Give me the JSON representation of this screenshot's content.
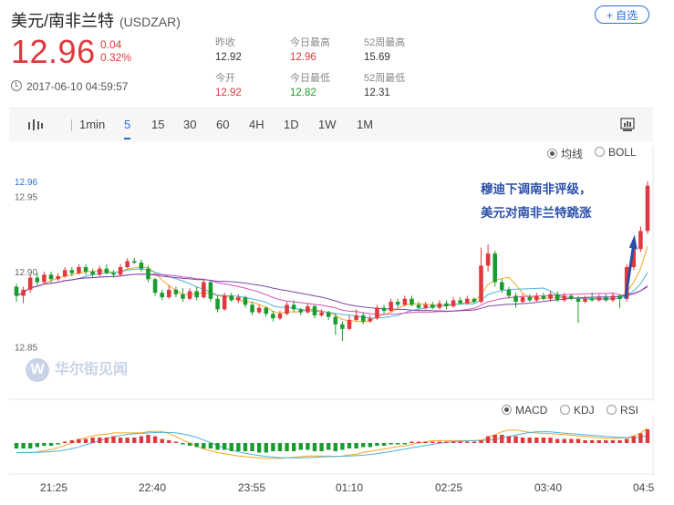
{
  "header": {
    "pair": "美元/南非兰特",
    "symbol": "(USDZAR)",
    "follow_label": "+ 自选",
    "price": "12.96",
    "change": "0.04",
    "change_pct": "0.32%",
    "timestamp": "2017-06-10 04:59:57",
    "stats": [
      {
        "label": "昨收",
        "value": "12.92"
      },
      {
        "label": "今日最高",
        "value": "12.96"
      },
      {
        "label": "52周最高",
        "value": "15.69"
      },
      {
        "label": "今开",
        "value": "12.92"
      },
      {
        "label": "今日最低",
        "value": "12.82"
      },
      {
        "label": "52周最低",
        "value": "12.31"
      }
    ]
  },
  "toolbar": {
    "intervals": [
      "1min",
      "5",
      "15",
      "30",
      "60",
      "4H",
      "1D",
      "1W",
      "1M"
    ],
    "active": "5",
    "chart_icon": "candlestick-icon",
    "settings_icon": "chart-settings-icon"
  },
  "main_options": {
    "ma_label": "均线",
    "boll_label": "BOLL",
    "selected": "均线"
  },
  "sub_options": {
    "macd": "MACD",
    "kdj": "KDJ",
    "rsi": "RSI",
    "selected": "MACD"
  },
  "annotation": {
    "line1": "穆迪下调南非评级，",
    "line2": "美元对南非兰特跳涨"
  },
  "watermark": "华尔街见闻",
  "colors": {
    "up": "#e0383e",
    "down": "#1a9b2f",
    "accent": "#2a6fd6",
    "annotation": "#2b4fa8"
  },
  "chart_data": {
    "type": "candlestick",
    "y_ticks": [
      "12.95",
      "12.90",
      "12.85"
    ],
    "current_price_label": "12.96",
    "ylim": [
      12.825,
      12.975
    ],
    "x_ticks": [
      "21:25",
      "22:40",
      "23:55",
      "01:10",
      "02:25",
      "03:40",
      "04:5"
    ],
    "candles": [
      [
        12.89,
        12.884,
        12.892,
        12.88
      ],
      [
        12.884,
        12.888,
        12.89,
        12.879
      ],
      [
        12.888,
        12.896,
        12.898,
        12.886
      ],
      [
        12.896,
        12.893,
        12.899,
        12.891
      ],
      [
        12.893,
        12.898,
        12.9,
        12.892
      ],
      [
        12.898,
        12.895,
        12.9,
        12.893
      ],
      [
        12.895,
        12.897,
        12.899,
        12.894
      ],
      [
        12.897,
        12.901,
        12.903,
        12.896
      ],
      [
        12.901,
        12.899,
        12.903,
        12.897
      ],
      [
        12.899,
        12.903,
        12.905,
        12.898
      ],
      [
        12.903,
        12.9,
        12.905,
        12.898
      ],
      [
        12.9,
        12.898,
        12.902,
        12.896
      ],
      [
        12.898,
        12.902,
        12.904,
        12.897
      ],
      [
        12.902,
        12.899,
        12.905,
        12.898
      ],
      [
        12.899,
        12.898,
        12.901,
        12.896
      ],
      [
        12.898,
        12.903,
        12.905,
        12.897
      ],
      [
        12.903,
        12.907,
        12.909,
        12.902
      ],
      [
        12.907,
        12.906,
        12.909,
        12.905
      ],
      [
        12.906,
        12.902,
        12.908,
        12.9
      ],
      [
        12.902,
        12.895,
        12.904,
        12.893
      ],
      [
        12.895,
        12.886,
        12.896,
        12.884
      ],
      [
        12.886,
        12.883,
        12.888,
        12.881
      ],
      [
        12.883,
        12.888,
        12.891,
        12.882
      ],
      [
        12.888,
        12.885,
        12.89,
        12.883
      ],
      [
        12.885,
        12.882,
        12.889,
        12.88
      ],
      [
        12.882,
        12.887,
        12.889,
        12.881
      ],
      [
        12.887,
        12.883,
        12.89,
        12.881
      ],
      [
        12.883,
        12.893,
        12.895,
        12.882
      ],
      [
        12.893,
        12.882,
        12.894,
        12.88
      ],
      [
        12.882,
        12.875,
        12.884,
        12.873
      ],
      [
        12.875,
        12.884,
        12.886,
        12.874
      ],
      [
        12.884,
        12.881,
        12.886,
        12.88
      ],
      [
        12.881,
        12.883,
        12.885,
        12.879
      ],
      [
        12.883,
        12.878,
        12.884,
        12.876
      ],
      [
        12.878,
        12.873,
        12.88,
        12.871
      ],
      [
        12.873,
        12.876,
        12.878,
        12.872
      ],
      [
        12.876,
        12.872,
        12.877,
        12.87
      ],
      [
        12.872,
        12.869,
        12.874,
        12.867
      ],
      [
        12.869,
        12.872,
        12.874,
        12.868
      ],
      [
        12.872,
        12.878,
        12.88,
        12.871
      ],
      [
        12.878,
        12.875,
        12.881,
        12.873
      ],
      [
        12.875,
        12.873,
        12.876,
        12.871
      ],
      [
        12.873,
        12.877,
        12.879,
        12.872
      ],
      [
        12.877,
        12.871,
        12.878,
        12.869
      ],
      [
        12.871,
        12.873,
        12.875,
        12.87
      ],
      [
        12.873,
        12.87,
        12.874,
        12.868
      ],
      [
        12.87,
        12.865,
        12.872,
        12.858
      ],
      [
        12.865,
        12.862,
        12.867,
        12.854
      ],
      [
        12.862,
        12.868,
        12.871,
        12.861
      ],
      [
        12.868,
        12.871,
        12.875,
        12.867
      ],
      [
        12.871,
        12.867,
        12.873,
        12.865
      ],
      [
        12.867,
        12.869,
        12.871,
        12.866
      ],
      [
        12.869,
        12.876,
        12.878,
        12.868
      ],
      [
        12.876,
        12.874,
        12.878,
        12.872
      ],
      [
        12.874,
        12.88,
        12.882,
        12.873
      ],
      [
        12.88,
        12.878,
        12.882,
        12.876
      ],
      [
        12.878,
        12.882,
        12.884,
        12.877
      ],
      [
        12.882,
        12.878,
        12.884,
        12.877
      ],
      [
        12.878,
        12.876,
        12.88,
        12.875
      ],
      [
        12.876,
        12.878,
        12.88,
        12.875
      ],
      [
        12.878,
        12.876,
        12.88,
        12.875
      ],
      [
        12.876,
        12.879,
        12.881,
        12.875
      ],
      [
        12.879,
        12.877,
        12.881,
        12.875
      ],
      [
        12.877,
        12.881,
        12.883,
        12.876
      ],
      [
        12.881,
        12.879,
        12.883,
        12.878
      ],
      [
        12.879,
        12.882,
        12.884,
        12.878
      ],
      [
        12.882,
        12.88,
        12.883,
        12.879
      ],
      [
        12.88,
        12.904,
        12.916,
        12.879
      ],
      [
        12.904,
        12.912,
        12.918,
        12.9
      ],
      [
        12.912,
        12.893,
        12.914,
        12.89
      ],
      [
        12.893,
        12.888,
        12.895,
        12.886
      ],
      [
        12.888,
        12.884,
        12.89,
        12.882
      ],
      [
        12.884,
        12.88,
        12.886,
        12.876
      ],
      [
        12.88,
        12.883,
        12.885,
        12.879
      ],
      [
        12.883,
        12.881,
        12.885,
        12.88
      ],
      [
        12.881,
        12.884,
        12.886,
        12.88
      ],
      [
        12.884,
        12.882,
        12.886,
        12.881
      ],
      [
        12.882,
        12.885,
        12.887,
        12.88
      ],
      [
        12.885,
        12.881,
        12.887,
        12.88
      ],
      [
        12.881,
        12.884,
        12.886,
        12.88
      ],
      [
        12.884,
        12.882,
        12.885,
        12.881
      ],
      [
        12.882,
        12.88,
        12.884,
        12.866
      ],
      [
        12.88,
        12.882,
        12.884,
        12.879
      ],
      [
        12.882,
        12.881,
        12.886,
        12.88
      ],
      [
        12.881,
        12.883,
        12.885,
        12.88
      ],
      [
        12.883,
        12.881,
        12.885,
        12.88
      ],
      [
        12.881,
        12.884,
        12.886,
        12.88
      ],
      [
        12.884,
        12.882,
        12.885,
        12.876
      ],
      [
        12.882,
        12.903,
        12.905,
        12.88
      ],
      [
        12.903,
        12.915,
        12.922,
        12.901
      ],
      [
        12.915,
        12.927,
        12.93,
        12.913
      ],
      [
        12.927,
        12.957,
        12.96,
        12.925
      ]
    ],
    "ma_lines": 3,
    "macd_hist": [
      -2,
      -2,
      -2,
      -1.5,
      -1,
      -1,
      -0.5,
      0.5,
      1,
      1.5,
      1.5,
      2,
      2,
      2,
      2.5,
      2,
      2,
      2,
      2.5,
      3,
      2.5,
      1.5,
      1,
      0.5,
      -0.5,
      -1,
      -1.5,
      -2,
      -2,
      -2.5,
      -2.5,
      -3,
      -3,
      -3,
      -3,
      -3.5,
      -3.5,
      -3,
      -3,
      -3,
      -3,
      -2.5,
      -2.5,
      -3,
      -3,
      -2.5,
      -3,
      -2.5,
      -2,
      -2,
      -1.5,
      -1.5,
      -1,
      -1,
      -0.5,
      -0.5,
      -0.5,
      0.5,
      0.5,
      0.5,
      0.5,
      0.5,
      0.5,
      0.5,
      0.5,
      0.5,
      0.5,
      1,
      2.5,
      3,
      3,
      2.5,
      2.5,
      2,
      2,
      2,
      2,
      2,
      1.5,
      1.5,
      1.5,
      1.5,
      1,
      1,
      1,
      1,
      1,
      1,
      1.5,
      2.5,
      3.5,
      5
    ]
  }
}
